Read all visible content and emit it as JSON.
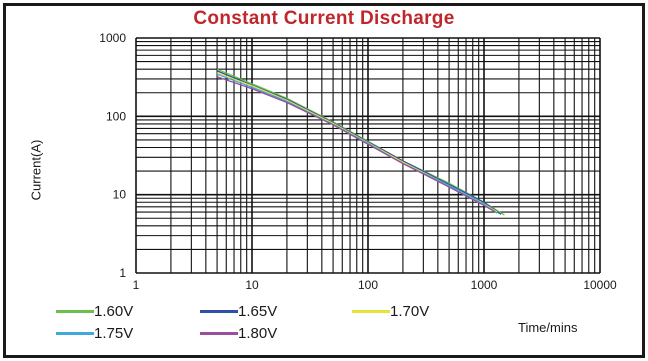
{
  "chart_data": {
    "type": "line",
    "title": "Constant Current Discharge",
    "xlabel": "Time/mins",
    "ylabel": "Current(A)",
    "xscale": "log",
    "yscale": "log",
    "xlim": [
      1,
      10000
    ],
    "ylim": [
      1,
      1000
    ],
    "x_ticks": [
      "1",
      "10",
      "100",
      "1000",
      "10000"
    ],
    "y_ticks": [
      "1",
      "10",
      "100",
      "1000"
    ],
    "grid": true,
    "legend_position": "bottom",
    "series": [
      {
        "name": "1.60V",
        "color": "#6cc04a",
        "points": [
          [
            5,
            400
          ],
          [
            10,
            260
          ],
          [
            20,
            170
          ],
          [
            50,
            85
          ],
          [
            100,
            48
          ],
          [
            200,
            27
          ],
          [
            500,
            14
          ],
          [
            1000,
            8
          ],
          [
            1500,
            5.5
          ]
        ]
      },
      {
        "name": "1.65V",
        "color": "#2f4fa8",
        "points": [
          [
            5,
            380
          ],
          [
            10,
            250
          ],
          [
            20,
            165
          ],
          [
            50,
            83
          ],
          [
            100,
            47
          ],
          [
            200,
            27
          ],
          [
            500,
            13.5
          ],
          [
            1000,
            8
          ],
          [
            1400,
            5.6
          ]
        ]
      },
      {
        "name": "1.70V",
        "color": "#e8e23a",
        "points": [
          [
            5,
            360
          ],
          [
            10,
            245
          ],
          [
            20,
            160
          ],
          [
            50,
            81
          ],
          [
            100,
            46
          ],
          [
            200,
            26
          ],
          [
            500,
            13
          ],
          [
            1000,
            7.6
          ],
          [
            1300,
            6
          ]
        ]
      },
      {
        "name": "1.75V",
        "color": "#3fa9dc",
        "points": [
          [
            5,
            345
          ],
          [
            10,
            235
          ],
          [
            20,
            155
          ],
          [
            50,
            79
          ],
          [
            100,
            45
          ],
          [
            200,
            25
          ],
          [
            500,
            13
          ],
          [
            1000,
            7.5
          ],
          [
            1300,
            5.8
          ]
        ]
      },
      {
        "name": "1.80V",
        "color": "#9b4f9e",
        "points": [
          [
            5,
            320
          ],
          [
            10,
            225
          ],
          [
            20,
            150
          ],
          [
            50,
            78
          ],
          [
            100,
            44
          ],
          [
            200,
            25
          ],
          [
            500,
            12.5
          ],
          [
            1000,
            7.3
          ],
          [
            1250,
            6
          ]
        ]
      }
    ]
  }
}
